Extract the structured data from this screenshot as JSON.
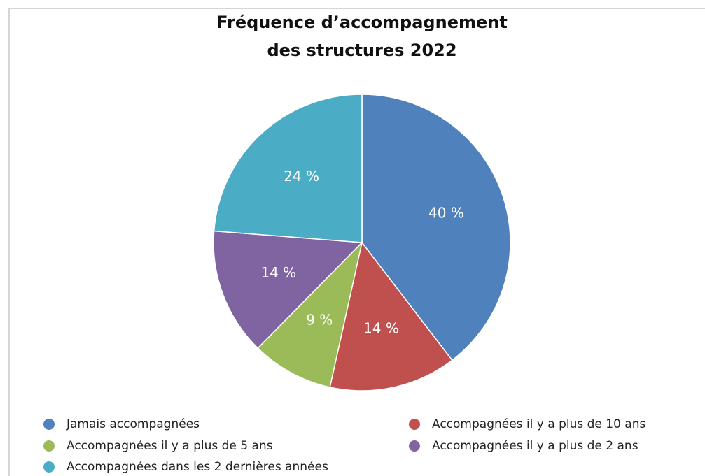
{
  "chart_data": {
    "type": "pie",
    "title": [
      "Fréquence d’accompagnement",
      "des structures 2022"
    ],
    "categories": [
      "Jamais accompagnées",
      "Accompagnées il y a plus de 10 ans",
      "Accompagnées il y a plus de 5 ans",
      "Accompagnées il y a plus de 2 ans",
      "Accompagnées dans les 2 dernières années"
    ],
    "values": [
      40,
      14,
      9,
      14,
      24
    ],
    "value_labels": [
      "40 %",
      "14 %",
      "9 %",
      "14 %",
      "24 %"
    ],
    "colors": [
      "#4f81bd",
      "#c0504d",
      "#9bbb59",
      "#8064a2",
      "#4bacc6"
    ],
    "legend": "bottom"
  }
}
